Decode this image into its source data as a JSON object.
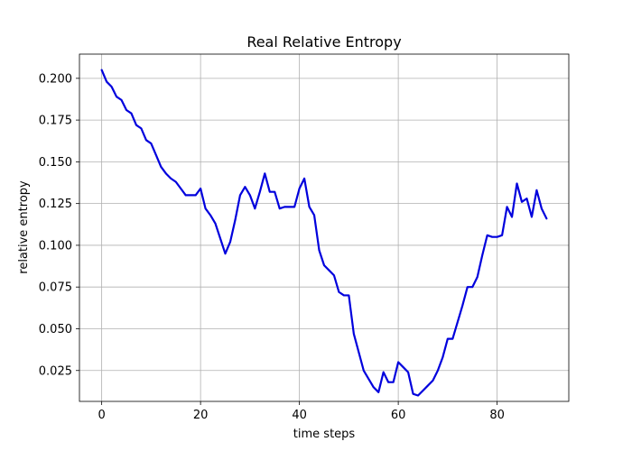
{
  "chart_data": {
    "type": "line",
    "title": "Real Relative Entropy",
    "xlabel": "time steps",
    "ylabel": "relative entropy",
    "xlim": [
      -4.5,
      94.5
    ],
    "ylim": [
      0.0065,
      0.2145
    ],
    "xticks": [
      0,
      20,
      40,
      60,
      80
    ],
    "xtick_labels": [
      "0",
      "20",
      "40",
      "60",
      "80"
    ],
    "yticks": [
      0.025,
      0.05,
      0.075,
      0.1,
      0.125,
      0.15,
      0.175,
      0.2
    ],
    "ytick_labels": [
      "0.025",
      "0.050",
      "0.075",
      "0.100",
      "0.125",
      "0.150",
      "0.175",
      "0.200"
    ],
    "grid": true,
    "series": [
      {
        "color": "#0000dd",
        "x": [
          0,
          1,
          2,
          3,
          4,
          5,
          6,
          7,
          8,
          9,
          10,
          11,
          12,
          13,
          14,
          15,
          16,
          17,
          18,
          19,
          20,
          21,
          22,
          23,
          24,
          25,
          26,
          27,
          28,
          29,
          30,
          31,
          32,
          33,
          34,
          35,
          36,
          37,
          38,
          39,
          40,
          41,
          42,
          43,
          44,
          45,
          46,
          47,
          48,
          49,
          50,
          51,
          52,
          53,
          54,
          55,
          56,
          57,
          58,
          59,
          60,
          61,
          62,
          63,
          64,
          65,
          66,
          67,
          68,
          69,
          70,
          71,
          72,
          73,
          74,
          75,
          76,
          77,
          78,
          79,
          80,
          81,
          82,
          83,
          84,
          85,
          86,
          87,
          88,
          89,
          90
        ],
        "y": [
          0.205,
          0.198,
          0.195,
          0.189,
          0.187,
          0.181,
          0.179,
          0.172,
          0.17,
          0.163,
          0.161,
          0.154,
          0.147,
          0.143,
          0.14,
          0.138,
          0.134,
          0.13,
          0.13,
          0.13,
          0.134,
          0.122,
          0.118,
          0.113,
          0.104,
          0.095,
          0.102,
          0.115,
          0.13,
          0.135,
          0.13,
          0.122,
          0.132,
          0.143,
          0.132,
          0.132,
          0.122,
          0.123,
          0.123,
          0.123,
          0.134,
          0.14,
          0.123,
          0.118,
          0.097,
          0.088,
          0.085,
          0.082,
          0.072,
          0.07,
          0.07,
          0.047,
          0.036,
          0.025,
          0.02,
          0.015,
          0.012,
          0.024,
          0.018,
          0.018,
          0.03,
          0.027,
          0.024,
          0.011,
          0.01,
          0.013,
          0.016,
          0.019,
          0.025,
          0.033,
          0.044,
          0.044,
          0.054,
          0.064,
          0.075,
          0.075,
          0.081,
          0.094,
          0.106,
          0.105,
          0.105,
          0.106,
          0.123,
          0.117,
          0.137,
          0.126,
          0.128,
          0.117,
          0.133,
          0.122,
          0.116
        ]
      }
    ]
  }
}
